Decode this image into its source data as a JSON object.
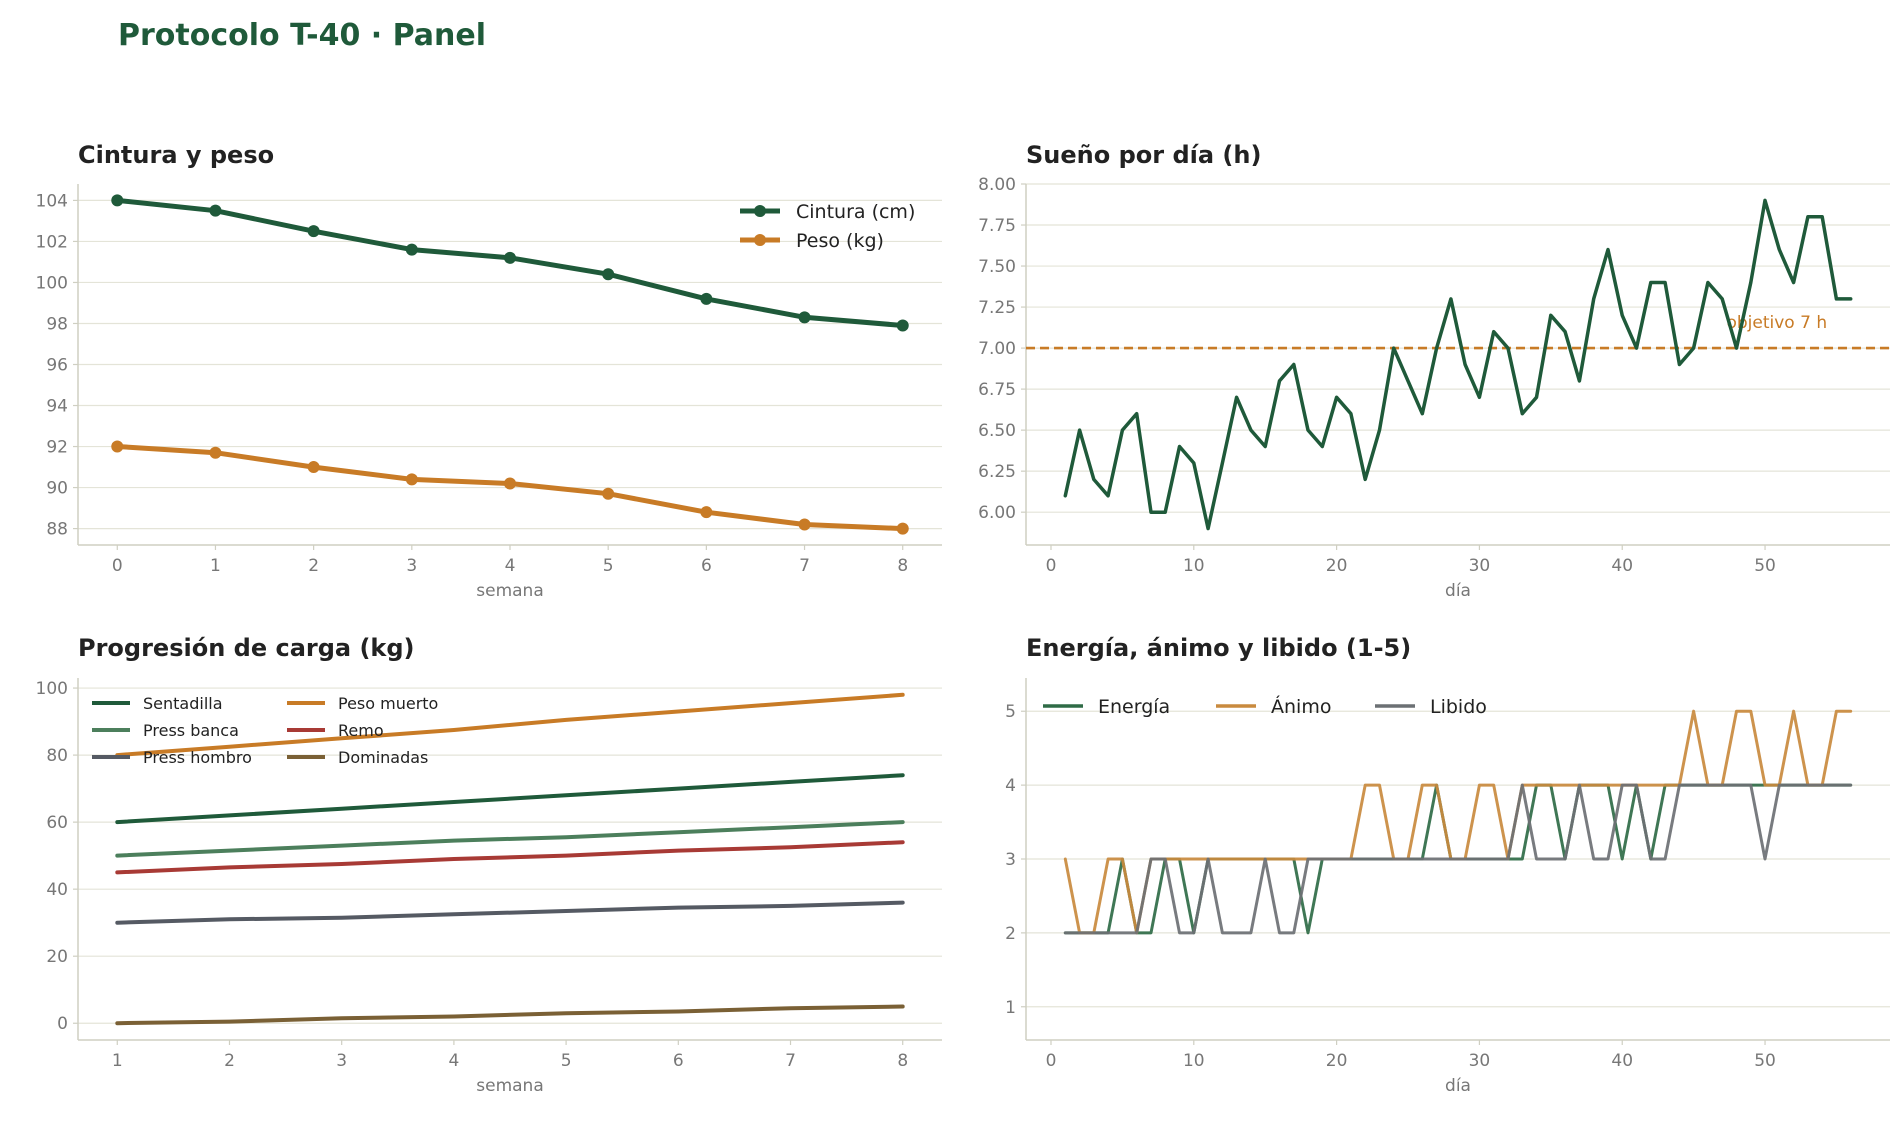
{
  "page": {
    "title": "Protocolo T-40 · Panel"
  },
  "chart_data": [
    {
      "id": "cintura",
      "type": "line",
      "title": "Cintura y peso",
      "xlabel": "semana",
      "ylabel": "",
      "x": [
        0,
        1,
        2,
        3,
        4,
        5,
        6,
        7,
        8
      ],
      "xticks": [
        0,
        1,
        2,
        3,
        4,
        5,
        6,
        7,
        8
      ],
      "xlim": [
        -0.4,
        8.4
      ],
      "yticks": [
        88,
        90,
        92,
        94,
        96,
        98,
        100,
        102,
        104
      ],
      "ylim": [
        87.2,
        104.8
      ],
      "grid": true,
      "legend": "top-right",
      "series": [
        {
          "name": "Cintura (cm)",
          "color": "#1f5a3a",
          "markers": true,
          "values": [
            104.0,
            103.5,
            102.5,
            101.6,
            101.2,
            100.4,
            99.2,
            98.3,
            97.9
          ]
        },
        {
          "name": "Peso (kg)",
          "color": "#c87b26",
          "markers": true,
          "values": [
            92.0,
            91.7,
            91.0,
            90.4,
            90.2,
            89.7,
            88.8,
            88.2,
            88.0
          ]
        }
      ]
    },
    {
      "id": "sueno",
      "type": "line",
      "title": "Sueño por día (h)",
      "xlabel": "día",
      "ylabel": "",
      "x": [
        1,
        2,
        3,
        4,
        5,
        6,
        7,
        8,
        9,
        10,
        11,
        12,
        13,
        14,
        15,
        16,
        17,
        18,
        19,
        20,
        21,
        22,
        23,
        24,
        25,
        26,
        27,
        28,
        29,
        30,
        31,
        32,
        33,
        34,
        35,
        36,
        37,
        38,
        39,
        40,
        41,
        42,
        43,
        44,
        45,
        46,
        47,
        48,
        49,
        50,
        51,
        52,
        53,
        54,
        55,
        56
      ],
      "xticks": [
        0,
        10,
        20,
        30,
        40,
        50
      ],
      "xlim": [
        -1.75,
        58.75
      ],
      "yticks": [
        6.0,
        6.25,
        6.5,
        6.75,
        7.0,
        7.25,
        7.5,
        7.75,
        8.0
      ],
      "ylim": [
        5.8,
        8.0
      ],
      "grid": true,
      "series": [
        {
          "name": "",
          "color": "#1f5a3a",
          "values": [
            6.1,
            6.5,
            6.2,
            6.1,
            6.5,
            6.6,
            6.0,
            6.0,
            6.4,
            6.3,
            5.9,
            6.3,
            6.7,
            6.5,
            6.4,
            6.8,
            6.9,
            6.5,
            6.4,
            6.7,
            6.6,
            6.2,
            6.5,
            7.0,
            6.8,
            6.6,
            7.0,
            7.3,
            6.9,
            6.7,
            7.1,
            7.0,
            6.6,
            6.7,
            7.2,
            7.1,
            6.8,
            7.3,
            7.6,
            7.2,
            7.0,
            7.4,
            7.4,
            6.9,
            7.0,
            7.4,
            7.3,
            7.0,
            7.4,
            7.9,
            7.6,
            7.4,
            7.8,
            7.8,
            7.3,
            7.3
          ]
        }
      ],
      "reference_line": {
        "y": 7.0,
        "label": "objetivo 7 h",
        "color": "#c87b26"
      }
    },
    {
      "id": "carga",
      "type": "line",
      "title": "Progresión de carga (kg)",
      "xlabel": "semana",
      "ylabel": "",
      "x": [
        1,
        2,
        3,
        4,
        5,
        6,
        7,
        8
      ],
      "xticks": [
        1,
        2,
        3,
        4,
        5,
        6,
        7,
        8
      ],
      "xlim": [
        0.65,
        8.35
      ],
      "yticks": [
        0,
        20,
        40,
        60,
        80,
        100
      ],
      "ylim": [
        -5,
        103
      ],
      "grid": true,
      "legend": "top-left",
      "series": [
        {
          "name": "Sentadilla",
          "color": "#1f5a3a",
          "values": [
            60,
            62,
            64,
            66,
            68,
            70,
            72,
            74
          ]
        },
        {
          "name": "Peso muerto",
          "color": "#c87b26",
          "values": [
            80,
            82.5,
            85,
            87.5,
            90.5,
            93,
            95.5,
            98
          ]
        },
        {
          "name": "Press banca",
          "color": "#4c7f5c",
          "values": [
            50,
            51.5,
            53,
            54.5,
            55.5,
            57,
            58.5,
            60
          ]
        },
        {
          "name": "Remo",
          "color": "#a83a35",
          "values": [
            45,
            46.5,
            47.5,
            49,
            50,
            51.5,
            52.5,
            54
          ]
        },
        {
          "name": "Press hombro",
          "color": "#555a63",
          "values": [
            30,
            31,
            31.5,
            32.5,
            33.5,
            34.5,
            35,
            36
          ]
        },
        {
          "name": "Dominadas",
          "color": "#7a6035",
          "values": [
            0,
            0.5,
            1.5,
            2,
            3,
            3.5,
            4.5,
            5
          ]
        }
      ]
    },
    {
      "id": "energia",
      "type": "line",
      "title": "Energía, ánimo y libido (1-5)",
      "xlabel": "día",
      "ylabel": "",
      "x": [
        1,
        2,
        3,
        4,
        5,
        6,
        7,
        8,
        9,
        10,
        11,
        12,
        13,
        14,
        15,
        16,
        17,
        18,
        19,
        20,
        21,
        22,
        23,
        24,
        25,
        26,
        27,
        28,
        29,
        30,
        31,
        32,
        33,
        34,
        35,
        36,
        37,
        38,
        39,
        40,
        41,
        42,
        43,
        44,
        45,
        46,
        47,
        48,
        49,
        50,
        51,
        52,
        53,
        54,
        55,
        56
      ],
      "xticks": [
        0,
        10,
        20,
        30,
        40,
        50
      ],
      "xlim": [
        -1.75,
        58.75
      ],
      "yticks": [
        1,
        2,
        3,
        4,
        5
      ],
      "ylim": [
        0.55,
        5.45
      ],
      "grid": true,
      "legend": "top-left",
      "series": [
        {
          "name": "Energía",
          "color": "#2f6b46",
          "values": [
            2,
            2,
            2,
            2,
            3,
            2,
            2,
            3,
            3,
            2,
            3,
            3,
            3,
            3,
            3,
            3,
            3,
            2,
            3,
            3,
            3,
            3,
            3,
            3,
            3,
            3,
            4,
            3,
            3,
            3,
            3,
            3,
            3,
            4,
            4,
            3,
            4,
            4,
            4,
            3,
            4,
            3,
            4,
            4,
            4,
            4,
            4,
            4,
            4,
            4,
            4,
            4,
            4,
            4,
            4,
            4
          ]
        },
        {
          "name": "Ánimo",
          "color": "#c98a3e",
          "values": [
            3,
            2,
            2,
            3,
            3,
            2,
            3,
            3,
            3,
            3,
            3,
            3,
            3,
            3,
            3,
            3,
            3,
            3,
            3,
            3,
            3,
            4,
            4,
            3,
            3,
            4,
            4,
            3,
            3,
            4,
            4,
            3,
            4,
            4,
            4,
            4,
            4,
            4,
            4,
            4,
            4,
            4,
            4,
            4,
            5,
            4,
            4,
            5,
            5,
            4,
            4,
            5,
            4,
            4,
            5,
            5
          ]
        },
        {
          "name": "Libido",
          "color": "#6c7074",
          "values": [
            2,
            2,
            2,
            2,
            2,
            2,
            3,
            3,
            2,
            2,
            3,
            2,
            2,
            2,
            3,
            2,
            2,
            3,
            3,
            3,
            3,
            3,
            3,
            3,
            3,
            3,
            3,
            3,
            3,
            3,
            3,
            3,
            4,
            3,
            3,
            3,
            4,
            3,
            3,
            4,
            4,
            3,
            3,
            4,
            4,
            4,
            4,
            4,
            4,
            3,
            4,
            4,
            4,
            4,
            4,
            4
          ]
        }
      ]
    }
  ]
}
